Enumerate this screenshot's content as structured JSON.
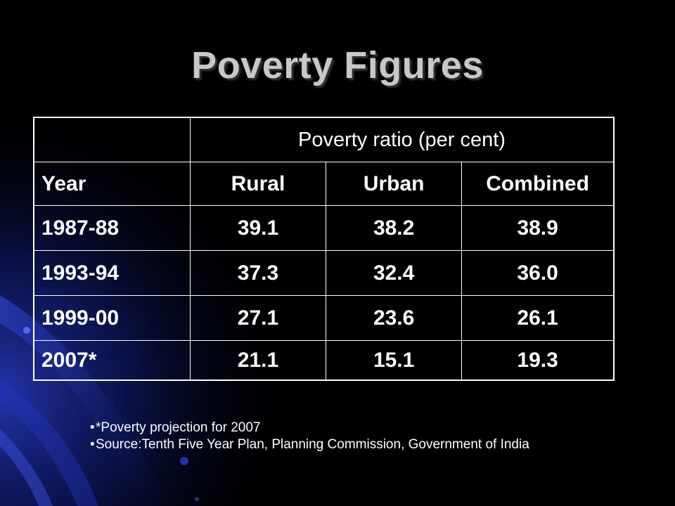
{
  "slide": {
    "title": "Poverty Figures"
  },
  "table": {
    "group_header": "Poverty ratio (per cent)",
    "columns": [
      "Year",
      "Rural",
      "Urban",
      "Combined"
    ],
    "rows": [
      [
        "1987-88",
        "39.1",
        "38.2",
        "38.9"
      ],
      [
        "1993-94",
        "37.3",
        "32.4",
        "36.0"
      ],
      [
        "1999-00",
        "27.1",
        "23.6",
        "26.1"
      ],
      [
        "2007*",
        "21.1",
        "15.1",
        "19.3"
      ]
    ]
  },
  "notes": {
    "bullet": "•",
    "items": [
      "*Poverty projection for 2007",
      "Source:Tenth Five Year Plan, Planning Commission, Government of India"
    ]
  },
  "colors": {
    "background": "#000000",
    "accent_blue": "#1a2a9a",
    "text": "#ffffff",
    "title": "#c8c8c8"
  }
}
